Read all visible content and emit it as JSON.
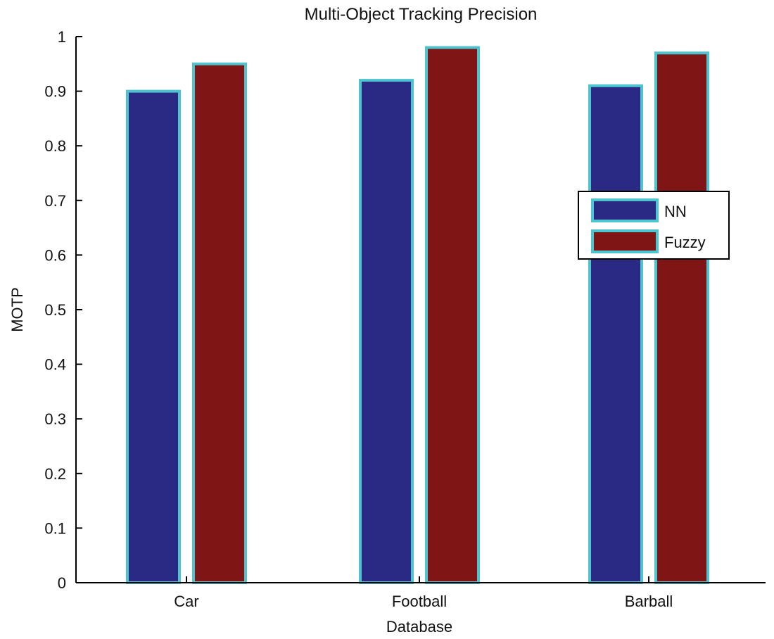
{
  "chart_data": {
    "type": "bar",
    "title": "Multi-Object Tracking Precision",
    "xlabel": "Database",
    "ylabel": "MOTP",
    "ylim": [
      0,
      1
    ],
    "yticks": [
      "0",
      "0.1",
      "0.2",
      "0.3",
      "0.4",
      "0.5",
      "0.6",
      "0.7",
      "0.8",
      "0.9",
      "1"
    ],
    "categories": [
      "Car",
      "Football",
      "Barball"
    ],
    "series": [
      {
        "name": "NN",
        "values": [
          0.9,
          0.92,
          0.91
        ],
        "color": "#2a2a84"
      },
      {
        "name": "Fuzzy",
        "values": [
          0.95,
          0.98,
          0.97
        ],
        "color": "#801515"
      }
    ],
    "bar_edge_color": "#4fc4cf",
    "legend_position": "right, middle",
    "grid": false
  }
}
